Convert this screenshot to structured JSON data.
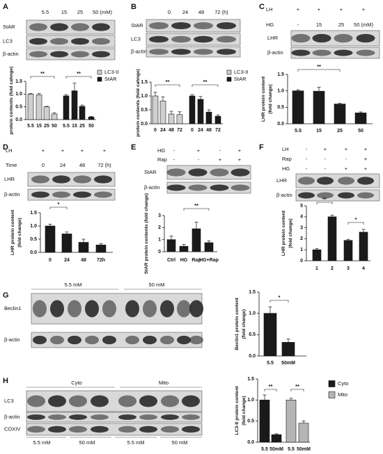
{
  "blots": [
    {
      "letter": "A",
      "conditions": [
        {
          "values": [
            "5.5",
            "15",
            "25",
            "50 (mM)"
          ]
        }
      ],
      "rows": [
        "StAR",
        "LC3",
        "β-actin"
      ]
    },
    {
      "letter": "B",
      "conditions": [
        {
          "values": [
            "0",
            "24",
            "48",
            "72 (h)"
          ]
        }
      ],
      "rows": [
        "StAR",
        "LC3",
        "β-actin"
      ]
    },
    {
      "letter": "C",
      "conditions": [
        {
          "name": "LH",
          "values": [
            "+",
            "+",
            "+",
            "+"
          ]
        },
        {
          "name": "HG",
          "values": [
            "-",
            "15",
            "25",
            "50 (mM)"
          ]
        }
      ],
      "rows": [
        "LHR",
        "β-actin"
      ]
    },
    {
      "letter": "D",
      "conditions": [
        {
          "name": "LH",
          "values": [
            "+",
            "+",
            "+",
            "+"
          ]
        },
        {
          "name": "Time",
          "values": [
            "0",
            "24",
            "48",
            "72 (h)"
          ]
        }
      ],
      "rows": [
        "LHR",
        "β-actin"
      ]
    },
    {
      "letter": "E",
      "conditions": [
        {
          "name": "HG",
          "values": [
            "-",
            "+",
            "-",
            "+"
          ]
        },
        {
          "name": "Rap",
          "values": [
            "-",
            "-",
            "+",
            "+"
          ]
        }
      ],
      "rows": [
        "StAR",
        "β-actin"
      ]
    },
    {
      "letter": "F",
      "conditions": [
        {
          "name": "LH",
          "values": [
            "-",
            "+",
            "+",
            "+"
          ]
        },
        {
          "name": "Rap",
          "values": [
            "-",
            "-",
            "-",
            "+"
          ]
        },
        {
          "name": "HG",
          "values": [
            "-",
            "-",
            "+",
            "+"
          ]
        }
      ],
      "rows": [
        "LHR",
        "β-actin"
      ]
    },
    {
      "letter": "G",
      "groups": [
        "5.5 mM",
        "50 mM"
      ],
      "rows": [
        "Beclin1",
        "β-actin"
      ]
    },
    {
      "letter": "H",
      "groups": [
        "Cyto",
        "Mito"
      ],
      "rows": [
        "LC3",
        "β-actin",
        "COXIV"
      ],
      "lanes": [
        "5.5 mM",
        "50 mM",
        "5.5 mM",
        "50 mM"
      ]
    }
  ],
  "chart_data": [
    {
      "type": "bar",
      "ylabel": "protein contents (fold cahnge)",
      "categories": [
        "5.5",
        "15",
        "25",
        "50",
        "5.5",
        "15",
        "25",
        "50"
      ],
      "series": [
        {
          "name": "LC3-II",
          "color": "#cfcfcf",
          "values": [
            1.0,
            0.97,
            0.5,
            0.22,
            null,
            null,
            null,
            null
          ],
          "errors": [
            0.02,
            0.05,
            0.02,
            0.05,
            null,
            null,
            null,
            null
          ]
        },
        {
          "name": "StAR",
          "color": "#1a1a1a",
          "values": [
            null,
            null,
            null,
            null,
            0.93,
            1.13,
            0.52,
            0.1
          ],
          "errors": [
            null,
            null,
            null,
            null,
            0.05,
            0.3,
            0.05,
            0.02
          ]
        }
      ],
      "ylim": [
        0,
        1.5
      ],
      "yticks": [
        {
          "value": 0,
          "label": "0.0"
        },
        {
          "value": 0.5,
          "label": "0.5"
        },
        {
          "value": 1,
          "label": "1.0"
        },
        {
          "value": 1.5,
          "label": "1.5"
        }
      ],
      "annotations": [
        "**",
        "**"
      ],
      "legend": "top-right"
    },
    {
      "type": "bar",
      "ylabel": "protein contents (fold cahnge)",
      "categories": [
        "0",
        "24",
        "48",
        "72",
        "0",
        "24",
        "48",
        "72"
      ],
      "series": [
        {
          "name": "LC3-II",
          "color": "#cfcfcf",
          "values": [
            1.0,
            0.82,
            0.35,
            0.33,
            null,
            null,
            null,
            null
          ],
          "errors": [
            0.13,
            0.15,
            0.1,
            0.1,
            null,
            null,
            null,
            null
          ]
        },
        {
          "name": "StAR",
          "color": "#1a1a1a",
          "values": [
            null,
            null,
            null,
            null,
            1.0,
            0.88,
            0.42,
            0.27
          ],
          "errors": [
            null,
            null,
            null,
            null,
            0.05,
            0.1,
            0.08,
            0.05
          ]
        }
      ],
      "ylim": [
        0,
        1.5
      ],
      "yticks": [
        {
          "value": 0,
          "label": "0.0"
        },
        {
          "value": 0.5,
          "label": "0.5"
        },
        {
          "value": 1,
          "label": "1.0"
        },
        {
          "value": 1.5,
          "label": "1.5"
        }
      ],
      "annotations": [
        "**",
        "**"
      ],
      "legend": "top-right"
    },
    {
      "type": "bar",
      "ylabel": [
        "LHR protein content",
        "(fold change)"
      ],
      "categories": [
        "5.5",
        "15",
        "25",
        "50"
      ],
      "color": "#1a1a1a",
      "values": [
        1.0,
        0.99,
        0.6,
        0.33
      ],
      "errors": [
        0.03,
        0.12,
        0.02,
        0.03
      ],
      "ylim": [
        0,
        1.5
      ],
      "yticks": [
        {
          "value": 0,
          "label": "0.0"
        },
        {
          "value": 0.5,
          "label": "0.5"
        },
        {
          "value": 1,
          "label": "1.0"
        },
        {
          "value": 1.5,
          "label": "1.5"
        }
      ],
      "annotations": [
        "**"
      ]
    },
    {
      "type": "bar",
      "ylabel": [
        "LHR protein content",
        "(fold change)"
      ],
      "categories": [
        "0",
        "24",
        "48",
        "72h"
      ],
      "color": "#1a1a1a",
      "values": [
        1.0,
        0.7,
        0.38,
        0.28
      ],
      "errors": [
        0.07,
        0.07,
        0.12,
        0.05
      ],
      "ylim": [
        0,
        1.5
      ],
      "yticks": [
        {
          "value": 0,
          "label": "0.0"
        },
        {
          "value": 0.5,
          "label": "0.5"
        },
        {
          "value": 1,
          "label": "1.0"
        },
        {
          "value": 1.5,
          "label": "1.5"
        }
      ],
      "annotations": [
        "*"
      ]
    },
    {
      "type": "bar",
      "ylabel": "StAR protein contents (fold change)",
      "categories": [
        "Ctrl",
        "HG",
        "Rap",
        "HG+Rap"
      ],
      "color": "#1a1a1a",
      "values": [
        1.0,
        0.45,
        1.9,
        0.75
      ],
      "errors": [
        0.3,
        0.15,
        0.55,
        0.15
      ],
      "ylim": [
        0,
        3
      ],
      "yticks": [
        0,
        1,
        2,
        3
      ],
      "annotations": [
        "**"
      ]
    },
    {
      "type": "bar",
      "ylabel": [
        "LHR protein content",
        "(fold change)"
      ],
      "categories": [
        "1",
        "2",
        "3",
        "4"
      ],
      "color": "#1a1a1a",
      "values": [
        1.0,
        4.0,
        1.85,
        2.6
      ],
      "errors": [
        0.1,
        0.15,
        0.1,
        0.25
      ],
      "ylim": [
        0,
        5
      ],
      "yticks": [
        0,
        1,
        2,
        3,
        4,
        5
      ],
      "annotations": [
        "**",
        "*"
      ]
    },
    {
      "type": "bar",
      "ylabel": [
        "Beclin1 protein content",
        "(fold change)"
      ],
      "categories": [
        "5.5",
        "50mM"
      ],
      "color": "#1a1a1a",
      "values": [
        1.0,
        0.32
      ],
      "errors": [
        0.15,
        0.08
      ],
      "ylim": [
        0,
        1.5
      ],
      "yticks": [
        {
          "value": 0,
          "label": "0.0"
        },
        {
          "value": 0.5,
          "label": "0.5"
        },
        {
          "value": 1,
          "label": "1.0"
        },
        {
          "value": 1.5,
          "label": "1.5"
        }
      ],
      "annotations": [
        "*"
      ]
    },
    {
      "type": "bar",
      "ylabel": [
        "LC3-II protein content",
        "(fold change)"
      ],
      "categories": [
        "5.5",
        "50mM",
        "5.5",
        "50mM"
      ],
      "series": [
        {
          "name": "Cyto",
          "color": "#1a1a1a",
          "values": [
            1.0,
            0.18,
            null,
            null
          ],
          "errors": [
            0.12,
            0.02,
            null,
            null
          ]
        },
        {
          "name": "Mito",
          "color": "#b5b5b5",
          "values": [
            null,
            null,
            1.0,
            0.45
          ],
          "errors": [
            null,
            null,
            0.04,
            0.05
          ]
        }
      ],
      "ylim": [
        0,
        1.5
      ],
      "yticks": [
        {
          "value": 0,
          "label": "0.0"
        },
        {
          "value": 0.5,
          "label": "0.5"
        },
        {
          "value": 1,
          "label": "1.0"
        },
        {
          "value": 1.5,
          "label": "1.5"
        }
      ],
      "annotations": [
        "**",
        "**"
      ],
      "legend": "outside-right"
    }
  ]
}
